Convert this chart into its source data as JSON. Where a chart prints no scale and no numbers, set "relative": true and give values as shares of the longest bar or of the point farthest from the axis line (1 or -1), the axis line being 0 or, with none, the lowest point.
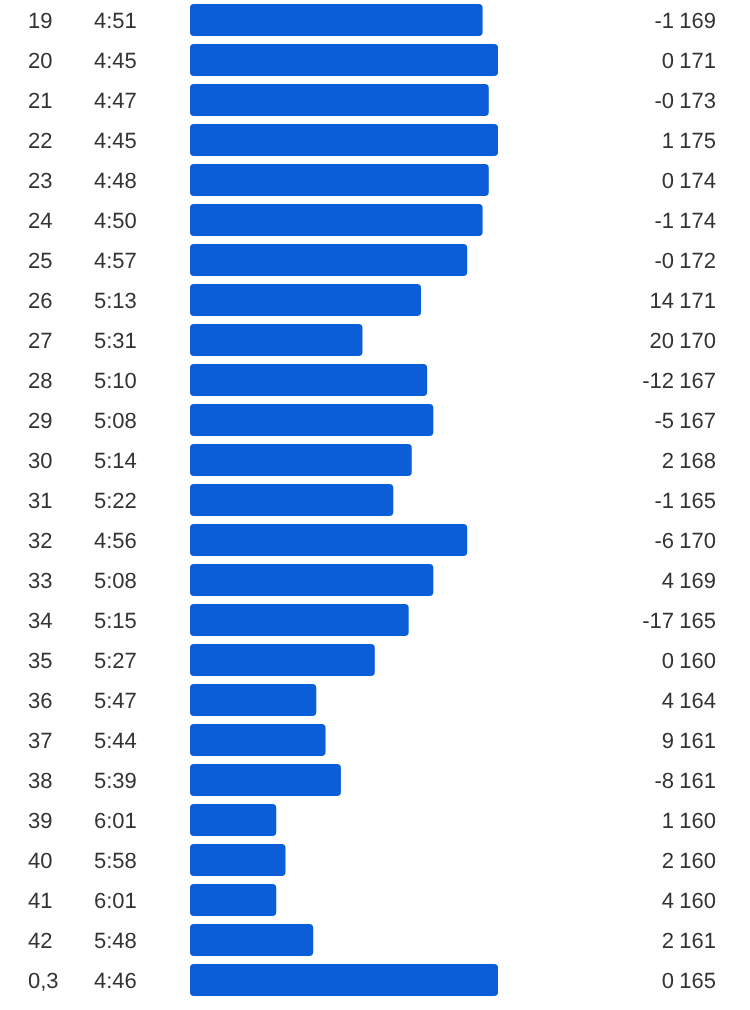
{
  "chart_data": {
    "type": "bar",
    "orientation": "horizontal",
    "relative": true,
    "color": "#0b5ed7",
    "categories": [
      "19",
      "20",
      "21",
      "22",
      "23",
      "24",
      "25",
      "26",
      "27",
      "28",
      "29",
      "30",
      "31",
      "32",
      "33",
      "34",
      "35",
      "36",
      "37",
      "38",
      "39",
      "40",
      "41",
      "42",
      "0,3"
    ],
    "values": [
      0.95,
      1,
      0.97,
      1,
      0.97,
      0.95,
      0.9,
      0.75,
      0.56,
      0.77,
      0.79,
      0.72,
      0.66,
      0.9,
      0.79,
      0.71,
      0.6,
      0.41,
      0.44,
      0.49,
      0.28,
      0.31,
      0.28,
      0.4,
      1
    ],
    "annotations": [
      "4:51",
      "-1",
      "169",
      "4:45",
      "0",
      "171",
      "4:47",
      "-0",
      "173",
      "4:45",
      "1",
      "175",
      "4:48",
      "0",
      "174",
      "4:50",
      "-1",
      "174",
      "4:57",
      "-0",
      "172",
      "5:13",
      "14",
      "171",
      "5:31",
      "20",
      "170",
      "5:10",
      "-12",
      "167",
      "5:08",
      "-5",
      "167",
      "5:14",
      "2",
      "168",
      "5:22",
      "-1",
      "165",
      "4:56",
      "-6",
      "170",
      "5:08",
      "4",
      "169",
      "5:15",
      "-17",
      "165",
      "5:27",
      "0",
      "160",
      "5:47",
      "4",
      "164",
      "5:44",
      "9",
      "161",
      "5:39",
      "-8",
      "161",
      "6:01",
      "1",
      "160",
      "5:58",
      "2",
      "160",
      "6:01",
      "4",
      "160",
      "5:48",
      "2",
      "161",
      "4:46",
      "0",
      "165"
    ]
  }
}
